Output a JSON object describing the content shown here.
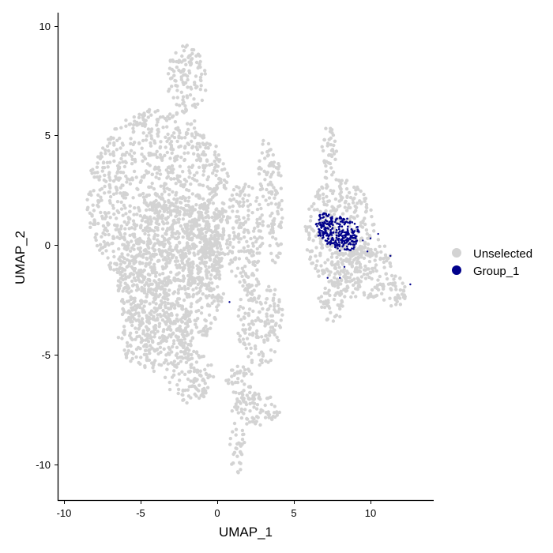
{
  "colors": {
    "unselected": "#d3d3d3",
    "group_1": "#00008b",
    "axis": "#000000"
  },
  "chart_data": {
    "type": "scatter",
    "title": "",
    "xlabel": "UMAP_1",
    "ylabel": "UMAP_2",
    "xlim": [
      -10.5,
      14
    ],
    "ylim": [
      -11.7,
      10.5
    ],
    "xticks": [
      -10,
      -5,
      0,
      5,
      10
    ],
    "yticks": [
      -10,
      -5,
      0,
      5,
      10
    ],
    "xtick_labels": [
      "-10",
      "-5",
      "0",
      "5",
      "10"
    ],
    "ytick_labels": [
      "-10",
      "-5",
      "0",
      "5",
      "10"
    ],
    "grid": false,
    "legend": {
      "position": "right",
      "entries": [
        "Unselected",
        "Group_1"
      ]
    },
    "series": [
      {
        "name": "Unselected",
        "color": "#d3d3d3",
        "regions": [
          {
            "cx": -3.8,
            "cy": 2.0,
            "rx": 4.7,
            "ry": 4.2
          },
          {
            "cx": -3.0,
            "cy": -1.5,
            "rx": 3.5,
            "ry": 3.5
          },
          {
            "cx": -4.0,
            "cy": -4.0,
            "rx": 2.5,
            "ry": 1.8
          },
          {
            "cx": -1.8,
            "cy": -6.0,
            "rx": 1.6,
            "ry": 1.2
          },
          {
            "cx": -2.0,
            "cy": 7.5,
            "rx": 1.3,
            "ry": 1.6
          },
          {
            "cx": -0.8,
            "cy": 0.0,
            "rx": 1.4,
            "ry": 2.0
          },
          {
            "cx": 1.8,
            "cy": 0.5,
            "rx": 1.2,
            "ry": 2.6
          },
          {
            "cx": 3.2,
            "cy": 3.5,
            "rx": 0.5,
            "ry": 1.5
          },
          {
            "cx": 3.8,
            "cy": 1.5,
            "rx": 0.5,
            "ry": 2.5
          },
          {
            "cx": 2.8,
            "cy": -3.5,
            "rx": 1.5,
            "ry": 2.0
          },
          {
            "cx": 1.5,
            "cy": -6.5,
            "rx": 1.0,
            "ry": 1.0
          },
          {
            "cx": 2.5,
            "cy": -7.5,
            "rx": 1.6,
            "ry": 0.8
          },
          {
            "cx": 1.3,
            "cy": -9.2,
            "rx": 0.5,
            "ry": 1.2
          },
          {
            "cx": 7.2,
            "cy": 4.2,
            "rx": 0.6,
            "ry": 1.2
          },
          {
            "cx": 8.0,
            "cy": 0.5,
            "rx": 2.3,
            "ry": 2.5
          },
          {
            "cx": 9.5,
            "cy": -1.0,
            "rx": 2.0,
            "ry": 1.5
          },
          {
            "cx": 11.5,
            "cy": -2.0,
            "rx": 1.0,
            "ry": 0.8
          },
          {
            "cx": 7.5,
            "cy": -2.5,
            "rx": 1.0,
            "ry": 1.0
          }
        ]
      },
      {
        "name": "Group_1",
        "color": "#00008b",
        "regions": [
          {
            "cx": 7.9,
            "cy": 0.6,
            "rx": 1.35,
            "ry": 0.7
          },
          {
            "cx": 7.0,
            "cy": 0.9,
            "rx": 0.6,
            "ry": 0.55
          },
          {
            "cx": 8.3,
            "cy": 0.2,
            "rx": 0.9,
            "ry": 0.5
          }
        ],
        "outliers": [
          [
            9.5,
            0.2
          ],
          [
            10.5,
            0.5
          ],
          [
            11.3,
            -0.5
          ],
          [
            12.6,
            -1.8
          ],
          [
            8.0,
            -1.5
          ],
          [
            8.3,
            -1.0
          ],
          [
            7.2,
            -1.5
          ],
          [
            0.8,
            -2.6
          ],
          [
            10.0,
            0.3
          ],
          [
            9.8,
            -0.3
          ]
        ]
      }
    ]
  }
}
